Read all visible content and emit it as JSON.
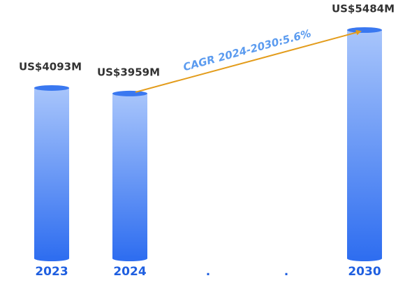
{
  "chart_data": {
    "type": "bar",
    "categories": [
      "2023",
      "2024",
      ".",
      ".",
      "2030"
    ],
    "values": [
      4093,
      3959,
      null,
      null,
      5484
    ],
    "value_labels": [
      "US$4093M",
      "US$3959M",
      null,
      null,
      "US$5484M"
    ],
    "color": "#3a78f0",
    "annotation": "CAGR 2024-2030:5.6%",
    "annotation_color": "#e39c1b"
  }
}
